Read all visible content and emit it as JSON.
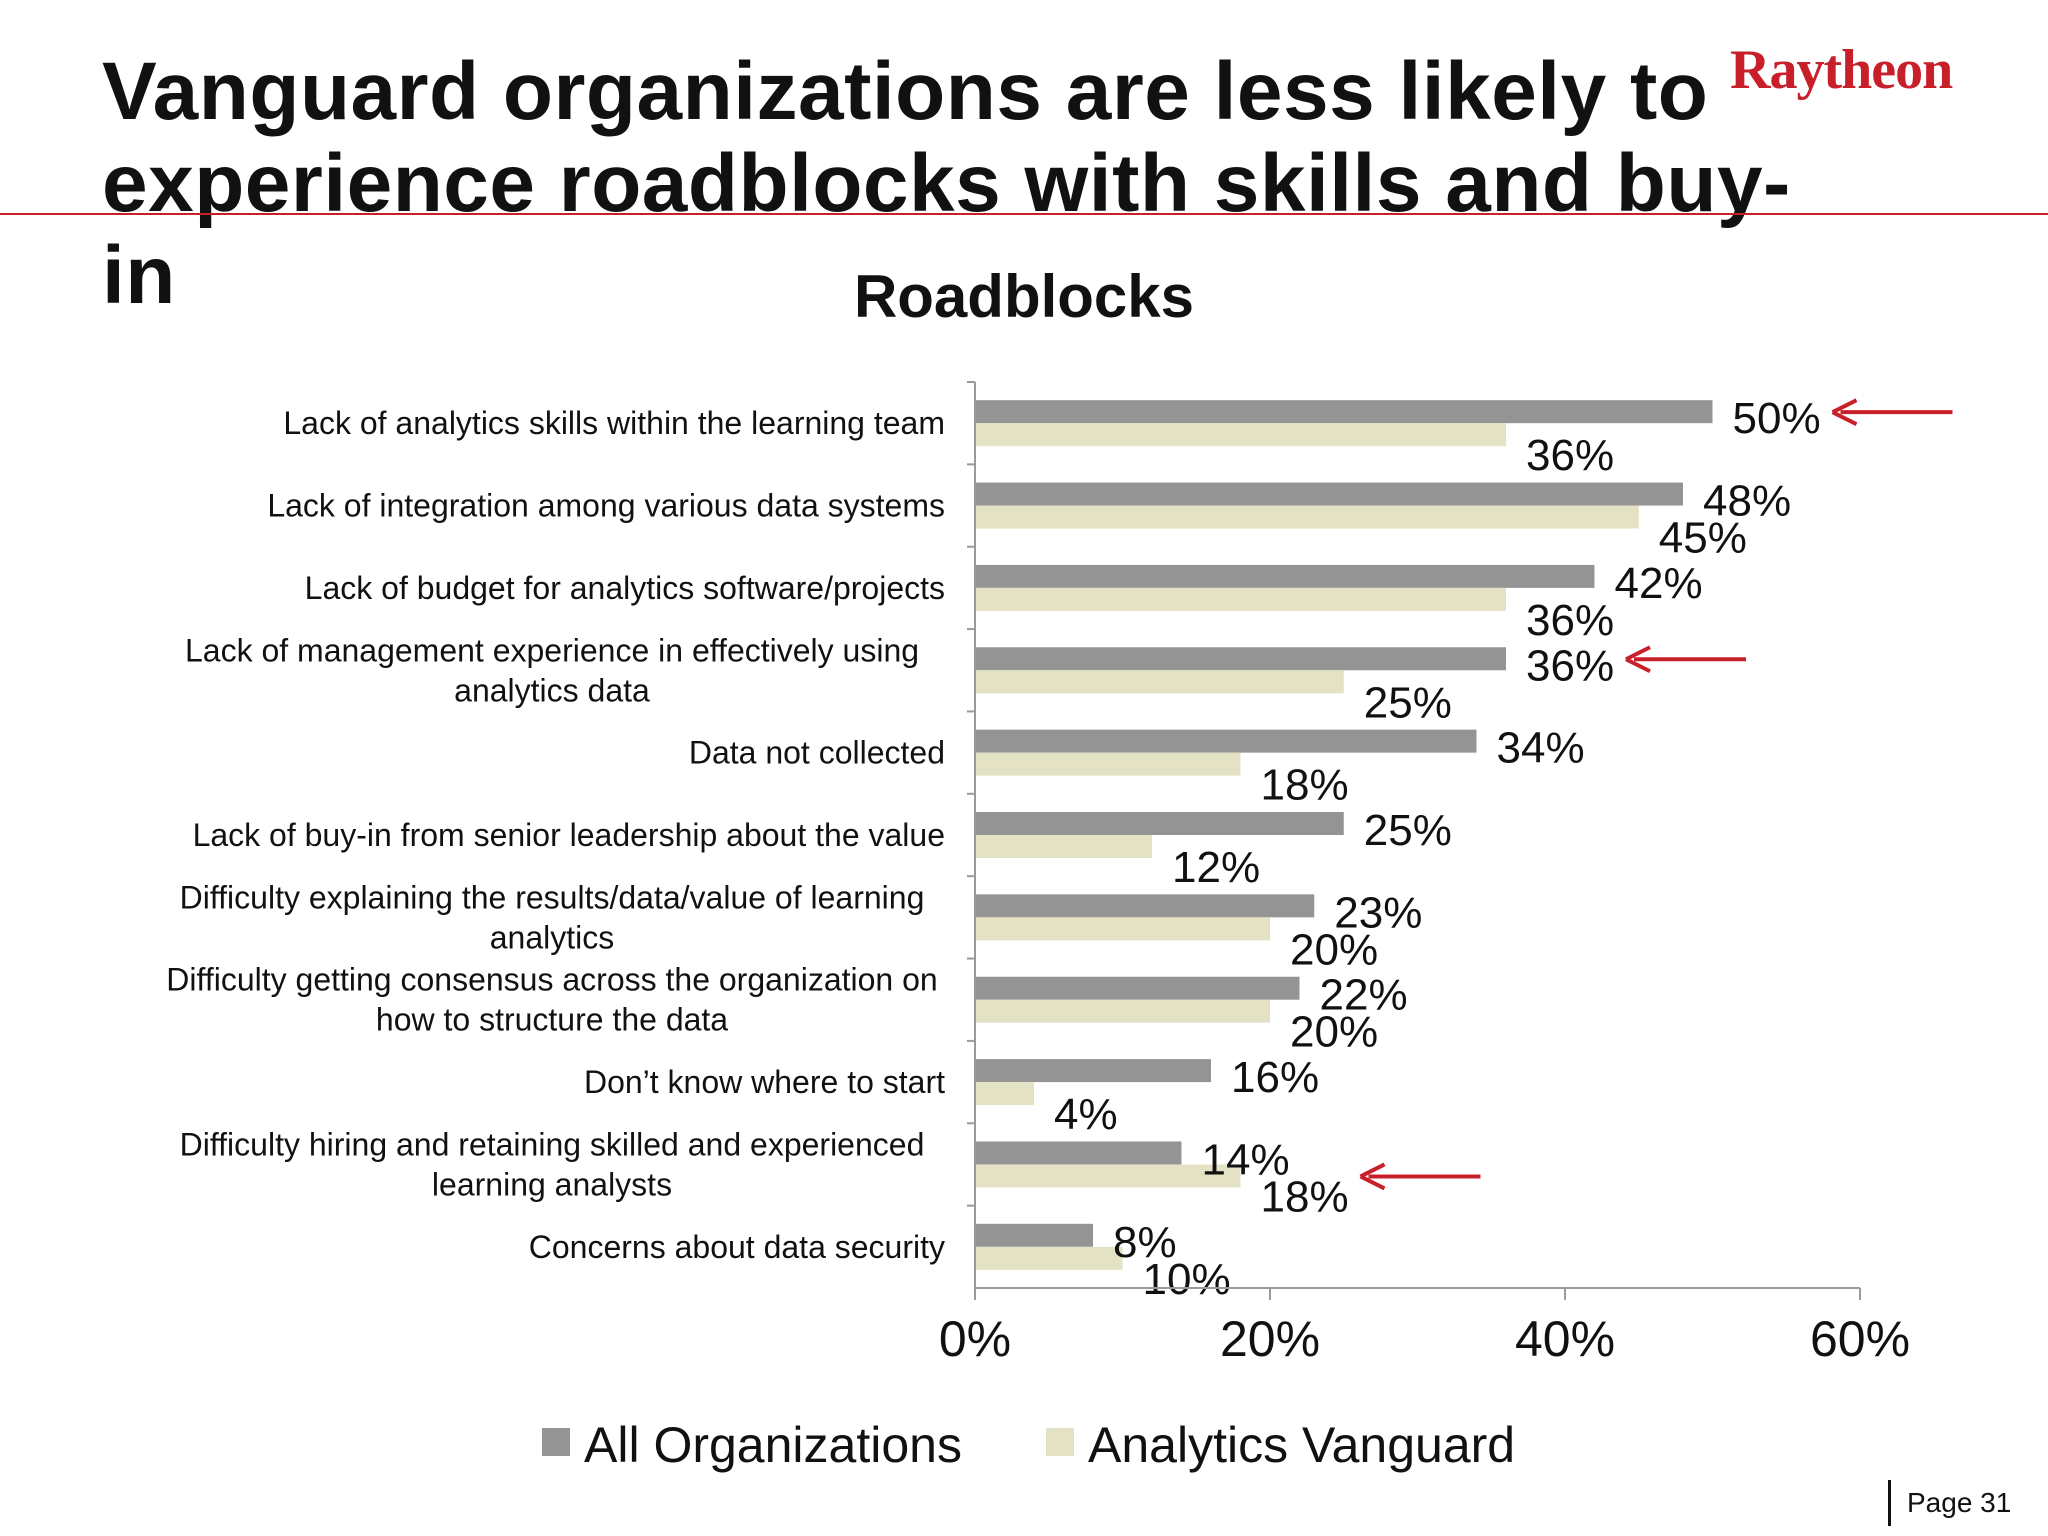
{
  "slide": {
    "title": "Vanguard organizations are less likely to\nexperience roadblocks with skills and buy-in",
    "logo_text": "Raytheon",
    "page_label": "Page 31",
    "accent_color": "#c8202a"
  },
  "chart_data": {
    "type": "bar",
    "orientation": "horizontal",
    "title": "Roadblocks",
    "xlabel": "",
    "ylabel": "",
    "xlim": [
      0,
      60
    ],
    "xticks": [
      0,
      20,
      40,
      60
    ],
    "tick_labels": [
      "0%",
      "20%",
      "40%",
      "60%"
    ],
    "value_suffix": "%",
    "grid": false,
    "legend_position": "bottom",
    "categories": [
      "Lack of analytics skills within the learning team",
      "Lack of integration among various data systems",
      "Lack of budget for analytics software/projects",
      "Lack of management experience in effectively using\nanalytics data",
      "Data not collected",
      "Lack of buy-in from senior leadership about the value",
      "Difficulty explaining the results/data/value of learning\nanalytics",
      "Difficulty getting consensus across the organization on\nhow to structure the data",
      "Don’t know where to start",
      "Difficulty hiring and retaining skilled and experienced\nlearning analysts",
      "Concerns about data security"
    ],
    "series": [
      {
        "name": "All Organizations",
        "color": "#949494",
        "values": [
          50,
          48,
          42,
          36,
          34,
          25,
          23,
          22,
          16,
          14,
          8
        ]
      },
      {
        "name": "Analytics Vanguard",
        "color": "#e4e2c4",
        "values": [
          36,
          45,
          36,
          25,
          18,
          12,
          20,
          20,
          4,
          18,
          10
        ]
      }
    ],
    "highlighted_categories": [
      0,
      3,
      9
    ],
    "highlight_color": "#c8202a"
  }
}
